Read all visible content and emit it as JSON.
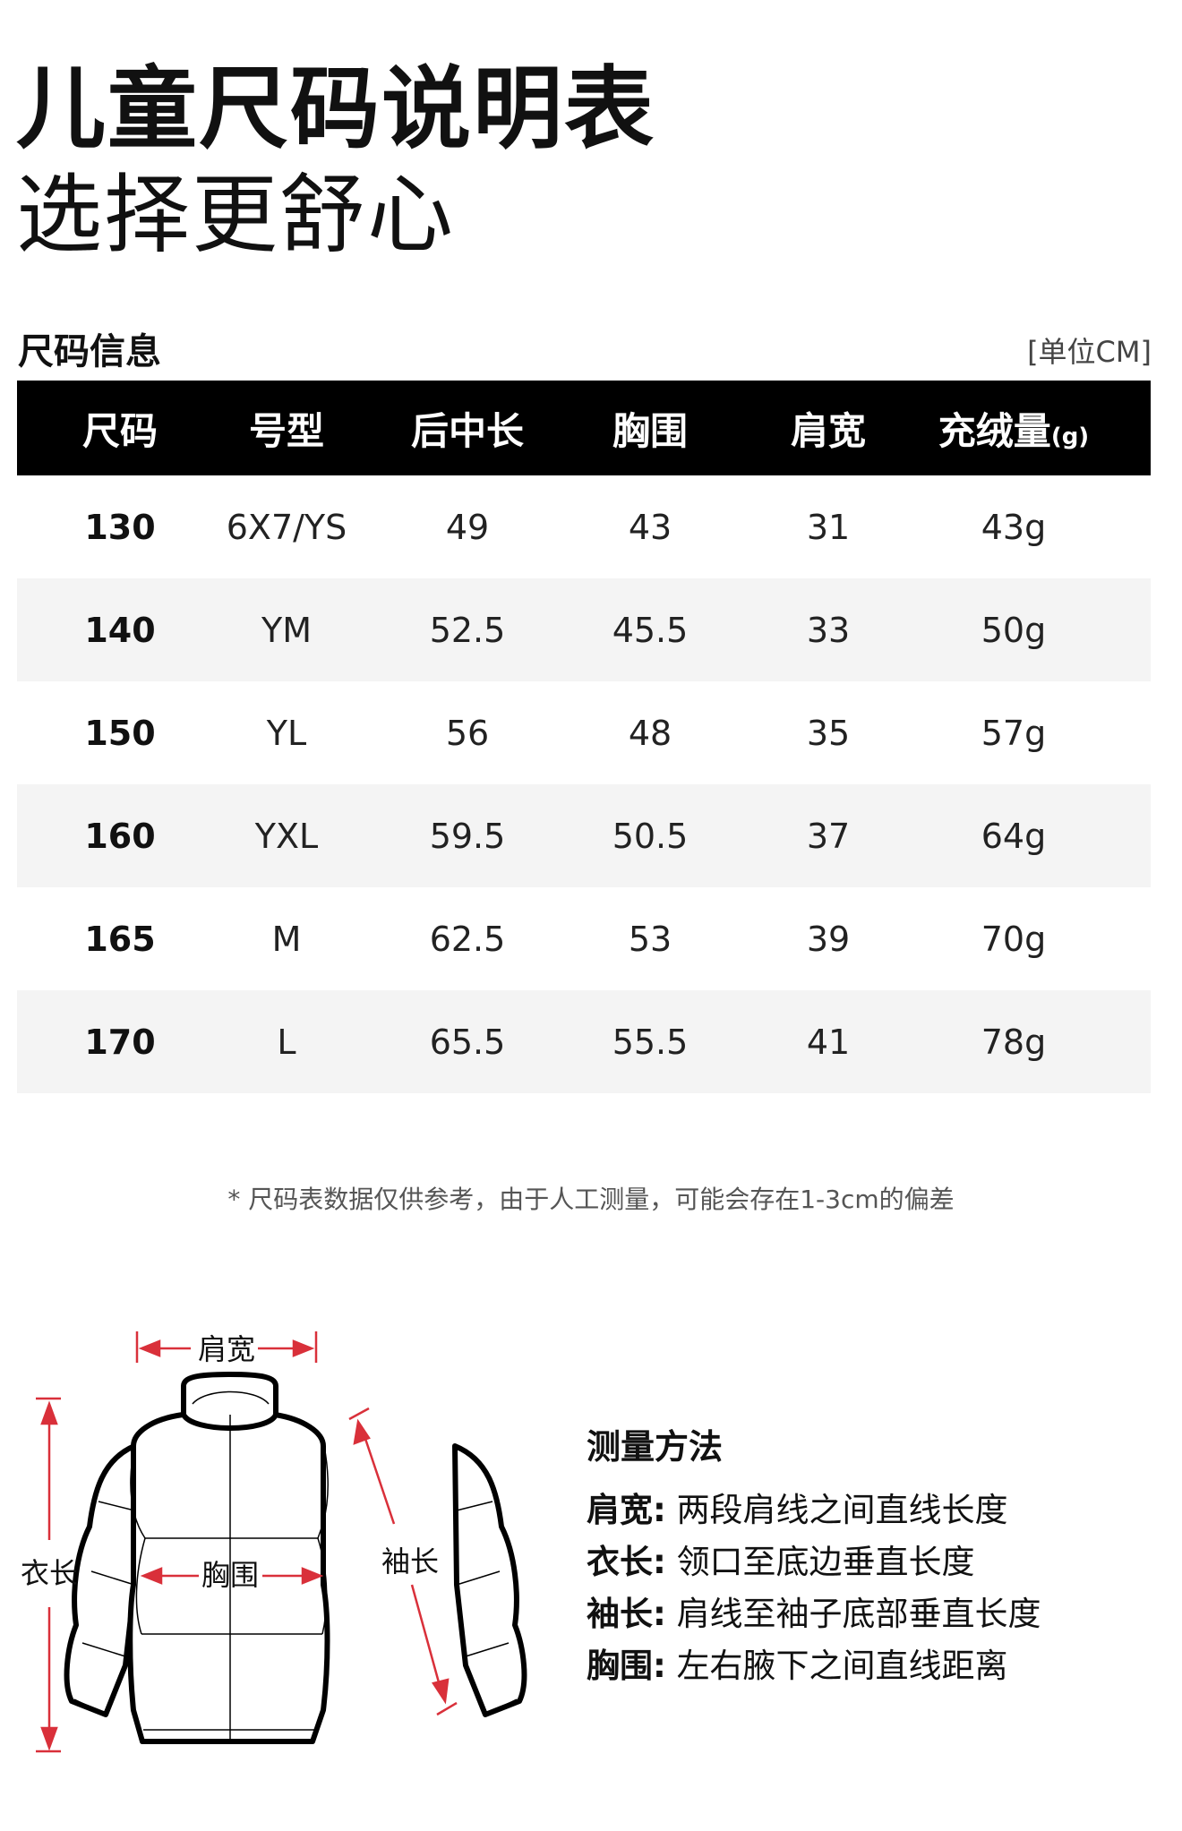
{
  "header": {
    "title": "儿童尺码说明表",
    "subtitle": "选择更舒心"
  },
  "section": {
    "title": "尺码信息",
    "unit": "[单位CM]"
  },
  "table": {
    "columns": [
      "尺码",
      "号型",
      "后中长",
      "胸围",
      "肩宽",
      "充绒量"
    ],
    "last_column_suffix": "(g)",
    "rows": [
      [
        "130",
        "6X7/YS",
        "49",
        "43",
        "31",
        "43g"
      ],
      [
        "140",
        "YM",
        "52.5",
        "45.5",
        "33",
        "50g"
      ],
      [
        "150",
        "YL",
        "56",
        "48",
        "35",
        "57g"
      ],
      [
        "160",
        "YXL",
        "59.5",
        "50.5",
        "37",
        "64g"
      ],
      [
        "165",
        "M",
        "62.5",
        "53",
        "39",
        "70g"
      ],
      [
        "170",
        "L",
        "65.5",
        "55.5",
        "41",
        "78g"
      ]
    ]
  },
  "note": "* 尺码表数据仅供参考，由于人工测量，可能会存在1-3cm的偏差",
  "diagram": {
    "shoulder": "肩宽",
    "length": "衣长",
    "chest": "胸围",
    "sleeve": "袖长",
    "arrow_color": "#d9303a"
  },
  "method": {
    "title": "测量方法",
    "items": [
      {
        "term": "肩宽:",
        "desc": "两段肩线之间直线长度"
      },
      {
        "term": "衣长:",
        "desc": "领口至底边垂直长度"
      },
      {
        "term": "袖长:",
        "desc": "肩线至袖子底部垂直长度"
      },
      {
        "term": "胸围:",
        "desc": "左右腋下之间直线距离"
      }
    ]
  }
}
